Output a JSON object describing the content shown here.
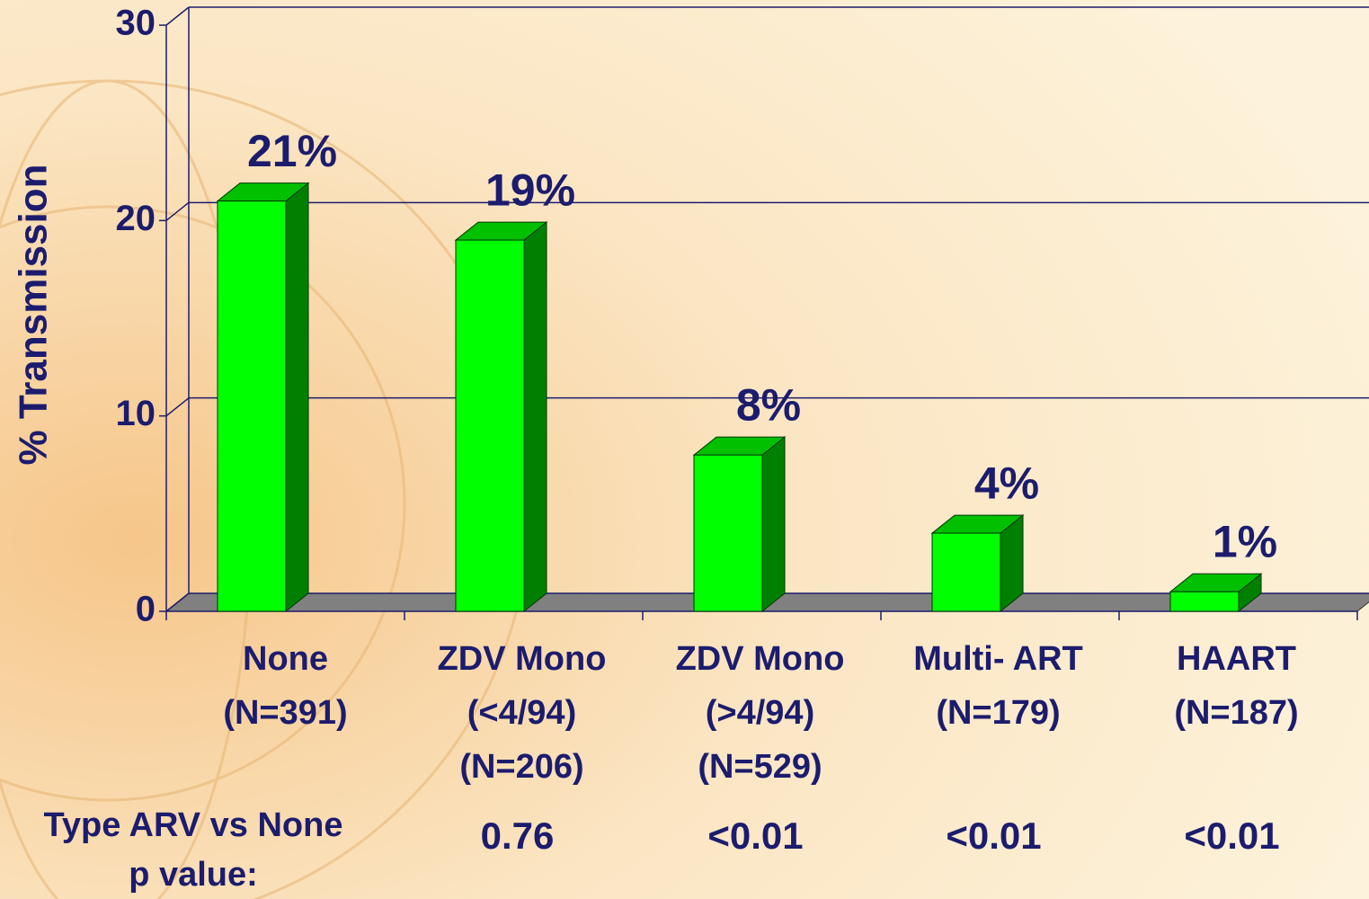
{
  "chart_data": {
    "type": "bar3d",
    "y_label": "% Transmission",
    "categories": [
      [
        "None",
        "(N=391)"
      ],
      [
        "ZDV Mono",
        "(<4/94)",
        "(N=206)"
      ],
      [
        "ZDV Mono",
        "(>4/94)",
        "(N=529)"
      ],
      [
        "Multi- ART",
        "(N=179)"
      ],
      [
        "HAART",
        "(N=187)"
      ]
    ],
    "values": [
      21,
      19,
      8,
      4,
      1
    ],
    "value_labels": [
      "21%",
      "19%",
      "8%",
      "4%",
      "1%"
    ],
    "ylim": [
      0,
      30
    ],
    "yticks": [
      0,
      10,
      20,
      30
    ],
    "grid": true,
    "color": "#00ff00",
    "p_values": {
      "label": [
        "Type ARV vs None",
        "p value:"
      ],
      "values": [
        null,
        "0.76",
        "<0.01",
        "<0.01",
        "<0.01"
      ]
    }
  }
}
